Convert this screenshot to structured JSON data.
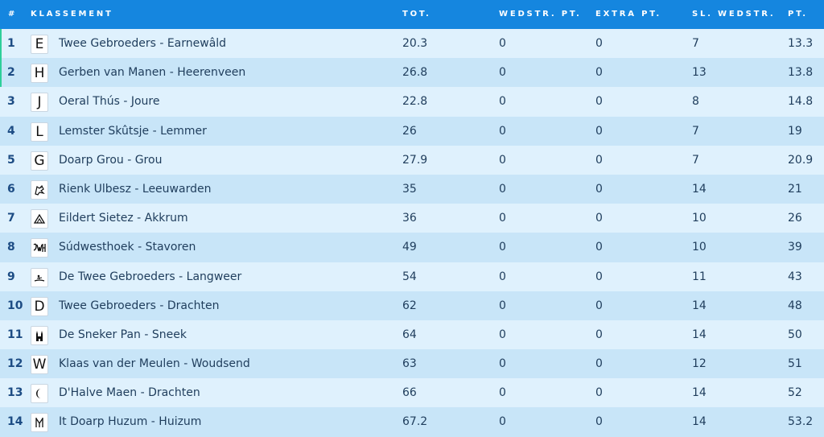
{
  "header": {
    "rank": "#",
    "klassement": "KLASSEMENT",
    "tot": "TOT.",
    "wedstr_pt": "WEDSTR. PT.",
    "extra_pt": "EXTRA PT.",
    "sl_wedstr": "SL. WEDSTR.",
    "pt": "PT."
  },
  "colors": {
    "header_bg": "#1586df",
    "row_light": "#dff1fd",
    "row_dark": "#c8e5f8",
    "highlight_bar": "#2ecf9a"
  },
  "rows": [
    {
      "rank": "1",
      "logo": "E",
      "logo_icon": "letter-e-icon",
      "name": "Twee Gebroeders - Earnewâld",
      "tot": "20.3",
      "wedstr": "0",
      "extra": "0",
      "sl": "7",
      "pt": "13.3",
      "highlight": true
    },
    {
      "rank": "2",
      "logo": "H",
      "logo_icon": "letter-h-icon",
      "name": "Gerben van Manen - Heerenveen",
      "tot": "26.8",
      "wedstr": "0",
      "extra": "0",
      "sl": "13",
      "pt": "13.8",
      "highlight": true
    },
    {
      "rank": "3",
      "logo": "J",
      "logo_icon": "letter-j-icon",
      "name": "Oeral Thús - Joure",
      "tot": "22.8",
      "wedstr": "0",
      "extra": "0",
      "sl": "8",
      "pt": "14.8"
    },
    {
      "rank": "4",
      "logo": "L",
      "logo_icon": "letter-l-icon",
      "name": "Lemster Skûtsje - Lemmer",
      "tot": "26",
      "wedstr": "0",
      "extra": "0",
      "sl": "7",
      "pt": "19"
    },
    {
      "rank": "5",
      "logo": "G",
      "logo_icon": "letter-g-icon",
      "name": "Doarp Grou - Grou",
      "tot": "27.9",
      "wedstr": "0",
      "extra": "0",
      "sl": "7",
      "pt": "20.9"
    },
    {
      "rank": "6",
      "logo": "",
      "logo_icon": "dragon-emblem-icon",
      "name": "Rienk Ulbesz - Leeuwarden",
      "tot": "35",
      "wedstr": "0",
      "extra": "0",
      "sl": "14",
      "pt": "21"
    },
    {
      "rank": "7",
      "logo": "",
      "logo_icon": "triangle-mountain-icon",
      "name": "Eildert Sietez - Akkrum",
      "tot": "36",
      "wedstr": "0",
      "extra": "0",
      "sl": "10",
      "pt": "26"
    },
    {
      "rank": "8",
      "logo": "",
      "logo_icon": "swh-monogram-icon",
      "name": "Súdwesthoek - Stavoren",
      "tot": "49",
      "wedstr": "0",
      "extra": "0",
      "sl": "10",
      "pt": "39"
    },
    {
      "rank": "9",
      "logo": "",
      "logo_icon": "rower-icon",
      "name": "De Twee Gebroeders - Langweer",
      "tot": "54",
      "wedstr": "0",
      "extra": "0",
      "sl": "11",
      "pt": "43"
    },
    {
      "rank": "10",
      "logo": "D",
      "logo_icon": "letter-d-icon",
      "name": "Twee Gebroeders - Drachten",
      "tot": "62",
      "wedstr": "0",
      "extra": "0",
      "sl": "14",
      "pt": "48"
    },
    {
      "rank": "11",
      "logo": "",
      "logo_icon": "waterpoort-gate-icon",
      "name": "De Sneker Pan - Sneek",
      "tot": "64",
      "wedstr": "0",
      "extra": "0",
      "sl": "14",
      "pt": "50"
    },
    {
      "rank": "12",
      "logo": "W",
      "logo_icon": "letter-w-icon",
      "name": "Klaas van der Meulen - Woudsend",
      "tot": "63",
      "wedstr": "0",
      "extra": "0",
      "sl": "12",
      "pt": "51"
    },
    {
      "rank": "13",
      "logo": "",
      "logo_icon": "crescent-moon-icon",
      "name": "D'Halve Maen - Drachten",
      "tot": "66",
      "wedstr": "0",
      "extra": "0",
      "sl": "14",
      "pt": "52"
    },
    {
      "rank": "14",
      "logo": "",
      "logo_icon": "hm-monogram-icon",
      "name": "It Doarp Huzum - Huizum",
      "tot": "67.2",
      "wedstr": "0",
      "extra": "0",
      "sl": "14",
      "pt": "53.2"
    }
  ]
}
